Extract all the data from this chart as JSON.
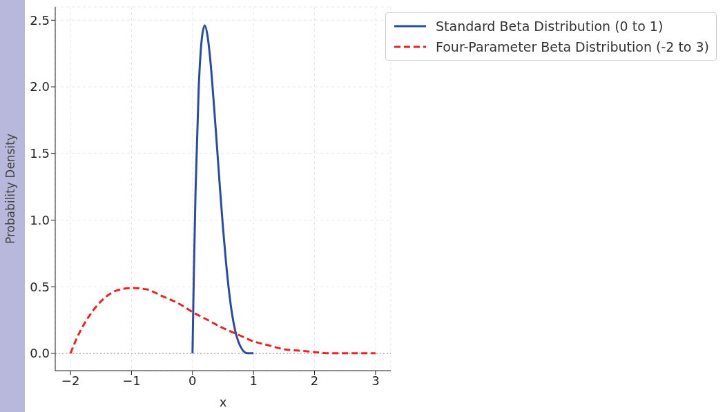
{
  "chart_data": {
    "type": "line",
    "xlabel": "x",
    "ylabel": "Probability Density",
    "xlim": [
      -2.25,
      3.25
    ],
    "ylim": [
      -0.13,
      2.6
    ],
    "xticks": [
      {
        "value": -2,
        "label": "−2"
      },
      {
        "value": -1,
        "label": "−1"
      },
      0,
      1,
      2,
      3
    ],
    "yticks": [
      {
        "value": 0,
        "label": "0.0"
      },
      {
        "value": 0.5,
        "label": "0.5"
      },
      {
        "value": 1,
        "label": "1.0"
      },
      {
        "value": 1.5,
        "label": "1.5"
      },
      {
        "value": 2,
        "label": "2.0"
      },
      {
        "value": 2.5,
        "label": "2.5"
      }
    ],
    "grid": true,
    "legend": "top right",
    "marker": "none",
    "ref_lines": [
      {
        "axis": "y",
        "value": 0,
        "color": "#808080",
        "line_style": "dotted"
      }
    ],
    "series": [
      {
        "name": "Standard Beta Distribution (0 to 1)",
        "color": "#2a4aa8",
        "line_style": "solid",
        "x": [
          0,
          0.02,
          0.05,
          0.1,
          0.15,
          0.2,
          0.25,
          0.3,
          0.35,
          0.4,
          0.45,
          0.5,
          0.55,
          0.6,
          0.65,
          0.7,
          0.75,
          0.8,
          0.85,
          0.9,
          1
        ],
        "values": [
          0,
          0.55,
          1.22,
          1.97,
          2.35,
          2.46,
          2.37,
          2.16,
          1.87,
          1.56,
          1.24,
          0.94,
          0.68,
          0.46,
          0.29,
          0.17,
          0.09,
          0.04,
          0.01,
          0,
          0
        ]
      },
      {
        "name": "Four-Parameter Beta Distribution (-2 to 3)",
        "color": "#ee2222",
        "line_style": "dashed",
        "x": [
          -2,
          -1.9,
          -1.75,
          -1.5,
          -1.25,
          -1,
          -0.75,
          -0.5,
          -0.25,
          0,
          0.25,
          0.5,
          0.75,
          1,
          1.25,
          1.5,
          1.75,
          2,
          2.25,
          2.5,
          3
        ],
        "values": [
          0,
          0.11,
          0.24,
          0.39,
          0.47,
          0.49,
          0.48,
          0.43,
          0.38,
          0.31,
          0.25,
          0.19,
          0.14,
          0.09,
          0.06,
          0.03,
          0.02,
          0.01,
          0,
          0,
          0
        ]
      }
    ]
  }
}
